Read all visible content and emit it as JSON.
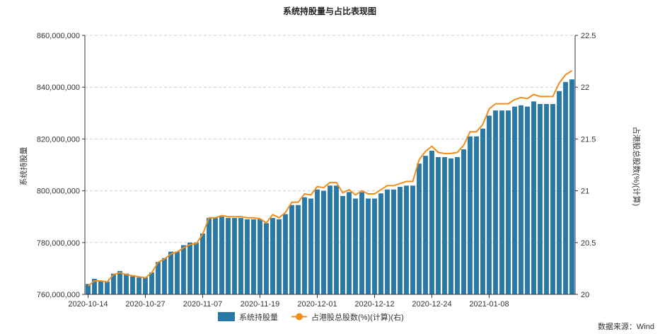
{
  "chart_data": {
    "type": "bar",
    "title": "系统持股量与占比表现图",
    "ylabel": "系统持股量",
    "ylabel_right": "占港股总股数(%)(计算)",
    "ylim": [
      760000000,
      860000000
    ],
    "ylim_right": [
      20,
      22.5
    ],
    "yticks": [
      "760,000,000",
      "780,000,000",
      "800,000,000",
      "820,000,000",
      "840,000,000",
      "860,000,000"
    ],
    "yticks_right": [
      "20",
      "20.5",
      "21",
      "21.5",
      "22",
      "22.5"
    ],
    "x_tick_labels": [
      "2020-10-14",
      "2020-10-27",
      "2020-11-07",
      "2020-11-19",
      "2020-12-01",
      "2020-12-12",
      "2020-12-24",
      "2021-01-08"
    ],
    "x_tick_positions": [
      0,
      9,
      18,
      27,
      36,
      45,
      54,
      63
    ],
    "source": "数据来源：Wind",
    "grid": true,
    "legend_position": "bottom-center",
    "colors": {
      "bar": "#2878a8",
      "line": "#f28e1c"
    },
    "series": [
      {
        "name": "系统持股量",
        "type": "bar",
        "axis": "left",
        "values": [
          764000000,
          766000000,
          765000000,
          765000000,
          768000000,
          769000000,
          768000000,
          767000000,
          766500000,
          766500000,
          768500000,
          772500000,
          774000000,
          776500000,
          776500000,
          779000000,
          780000000,
          780000000,
          783500000,
          789500000,
          789500000,
          790000000,
          789500000,
          789500000,
          789500000,
          789000000,
          789000000,
          789000000,
          787500000,
          789500000,
          789000000,
          791000000,
          794500000,
          794500000,
          797500000,
          797000000,
          800500000,
          800000000,
          802000000,
          802000000,
          798000000,
          799500000,
          797000000,
          799500000,
          797000000,
          797000000,
          799000000,
          800500000,
          800500000,
          801500000,
          802000000,
          802000000,
          810500000,
          813500000,
          815500000,
          813000000,
          813000000,
          812500000,
          813000000,
          816000000,
          821000000,
          821000000,
          824000000,
          829000000,
          831000000,
          831000000,
          831000000,
          832500000,
          833000000,
          832500000,
          834500000,
          833500000,
          833500000,
          833500000,
          838500000,
          842000000,
          843000000
        ]
      },
      {
        "name": "占港股总股数(%)(计算)(右)",
        "type": "line",
        "axis": "right",
        "values": [
          20.08,
          20.13,
          20.13,
          20.12,
          20.19,
          20.21,
          20.19,
          20.18,
          20.17,
          20.16,
          20.21,
          20.31,
          20.34,
          20.39,
          20.41,
          20.45,
          20.48,
          20.49,
          20.58,
          20.74,
          20.74,
          20.76,
          20.75,
          20.75,
          20.75,
          20.74,
          20.74,
          20.73,
          20.69,
          20.77,
          20.74,
          20.79,
          20.89,
          20.89,
          20.97,
          20.96,
          21.04,
          21.03,
          21.08,
          21.08,
          20.98,
          21.01,
          20.96,
          21.0,
          20.97,
          20.97,
          21.01,
          21.05,
          21.05,
          21.07,
          21.09,
          21.09,
          21.3,
          21.38,
          21.43,
          21.37,
          21.36,
          21.36,
          21.37,
          21.44,
          21.57,
          21.57,
          21.64,
          21.79,
          21.84,
          21.84,
          21.84,
          21.88,
          21.9,
          21.89,
          21.93,
          21.91,
          21.91,
          21.91,
          22.04,
          22.12,
          22.16
        ]
      }
    ]
  }
}
